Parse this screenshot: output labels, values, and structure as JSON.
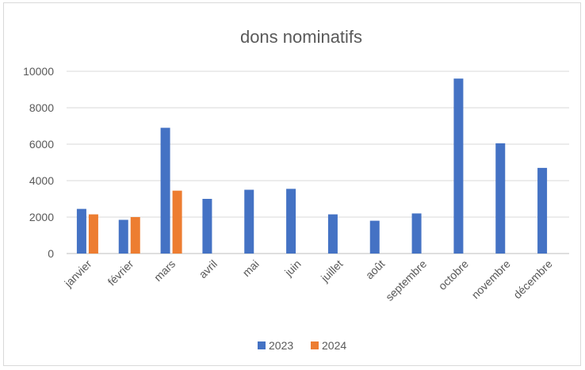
{
  "chart_data": {
    "type": "bar",
    "title": "dons nominatifs",
    "xlabel": "",
    "ylabel": "",
    "ylim": [
      0,
      10000
    ],
    "yticks": [
      0,
      2000,
      4000,
      6000,
      8000,
      10000
    ],
    "ytick_labels": [
      "0",
      "2000",
      "4000",
      "6000",
      "8000",
      "10000"
    ],
    "grid": true,
    "legend_position": "bottom",
    "categories": [
      "janvier",
      "février",
      "mars",
      "avril",
      "mai",
      "juin",
      "juillet",
      "août",
      "septembre",
      "octobre",
      "novembre",
      "décembre"
    ],
    "series": [
      {
        "name": "2023",
        "color": "#4472C4",
        "values": [
          2450,
          1850,
          6900,
          3000,
          3500,
          3550,
          2150,
          1800,
          2200,
          9600,
          6050,
          4700
        ]
      },
      {
        "name": "2024",
        "color": "#ED7D31",
        "values": [
          2150,
          2000,
          3450,
          null,
          null,
          null,
          null,
          null,
          null,
          null,
          null,
          null
        ]
      }
    ]
  }
}
